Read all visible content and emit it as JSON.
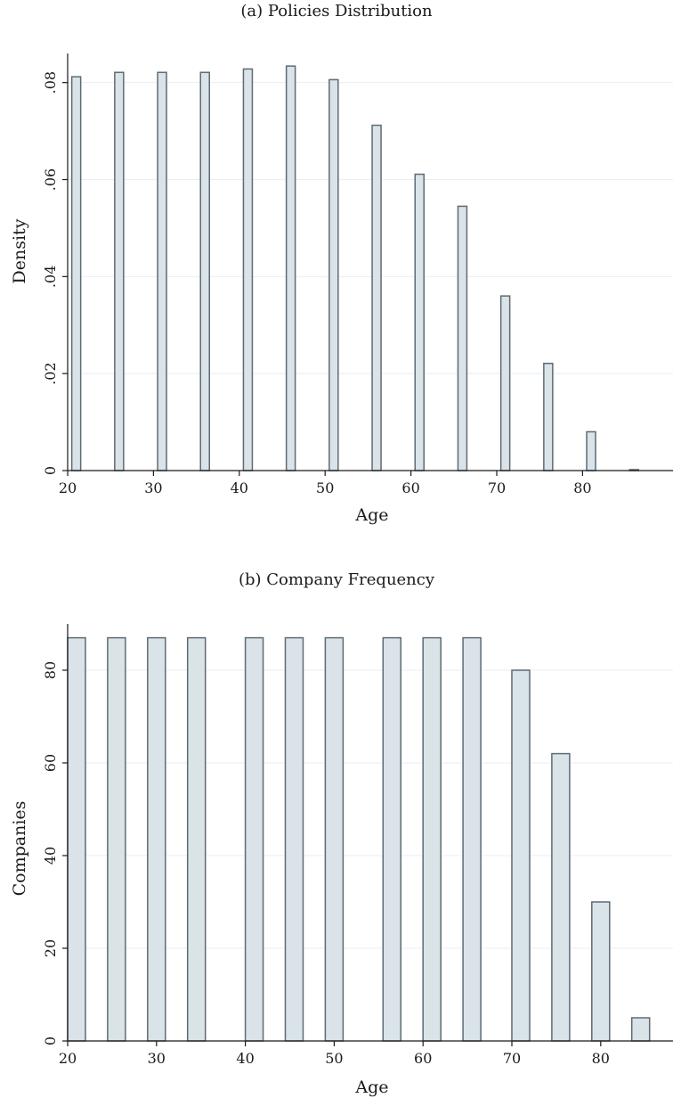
{
  "chart_data": [
    {
      "type": "bar",
      "title": "(a) Policies Distribution",
      "xlabel": "Age",
      "ylabel": "Density",
      "x": [
        21,
        26,
        31,
        36,
        41,
        46,
        51,
        56,
        61,
        66,
        71,
        76,
        81,
        86
      ],
      "values": [
        0.0812,
        0.0821,
        0.0821,
        0.0821,
        0.0828,
        0.0834,
        0.0806,
        0.0712,
        0.0611,
        0.0545,
        0.036,
        0.0221,
        0.008,
        0.0002
      ],
      "xticks": [
        20,
        30,
        40,
        50,
        60,
        70,
        80
      ],
      "xtick_labels": [
        "20",
        "30",
        "40",
        "50",
        "60",
        "70",
        "80"
      ],
      "yticks": [
        0,
        0.02,
        0.04,
        0.06,
        0.08
      ],
      "ytick_labels": [
        "0",
        ".02",
        ".04",
        ".06",
        ".08"
      ],
      "ylim": [
        0,
        0.086
      ],
      "grid": true,
      "bar_color": "#d9e3e8",
      "edge_color": "#5f6b73"
    },
    {
      "type": "bar",
      "title": "(b) Company Frequency",
      "xlabel": "Age",
      "ylabel": "Companies",
      "x": [
        21,
        25.5,
        30,
        34.5,
        41,
        45.5,
        50,
        56.5,
        61,
        65.5,
        71,
        75.5,
        80,
        84.5
      ],
      "values": [
        87,
        87,
        87,
        87,
        87,
        87,
        87,
        87,
        87,
        87,
        80,
        62,
        30,
        5
      ],
      "xticks": [
        20,
        30,
        40,
        50,
        60,
        70,
        80
      ],
      "xtick_labels": [
        "20",
        "30",
        "40",
        "50",
        "60",
        "70",
        "80"
      ],
      "yticks": [
        0,
        20,
        40,
        60,
        80
      ],
      "ytick_labels": [
        "0",
        "20",
        "40",
        "60",
        "80"
      ],
      "ylim": [
        0,
        90
      ],
      "grid": true,
      "bar_color": "#d9e3e8",
      "edge_color": "#5f6b73"
    }
  ]
}
